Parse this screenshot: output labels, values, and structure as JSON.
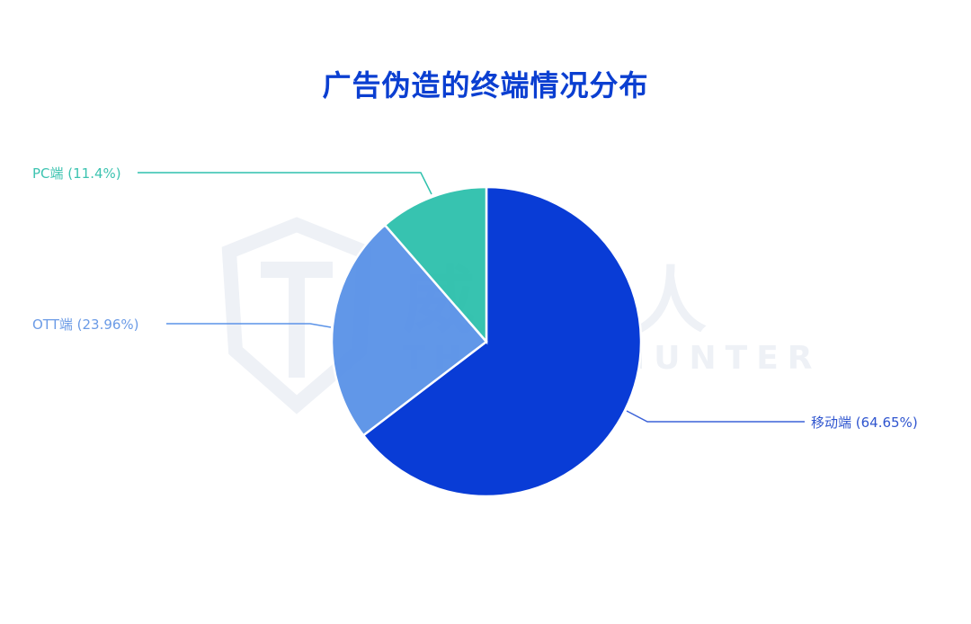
{
  "chart_data": {
    "type": "pie",
    "title": "广告伪造的终端情况分布",
    "start_angle": "12 o'clock",
    "direction": "clockwise",
    "slices": [
      {
        "label": "移动端 (64.65%)",
        "name": "移动端",
        "value": 64.65,
        "color": "#0035d5"
      },
      {
        "label": "OTT端 (23.96%)",
        "name": "OTT端",
        "value": 23.96,
        "color": "#5b93e8"
      },
      {
        "label": "PC端 (11.4%)",
        "name": "PC端",
        "value": 11.4,
        "color": "#2fc1ad"
      }
    ]
  },
  "watermark": {
    "cn": "威胁猎人",
    "en": "THREAT HUNTER"
  }
}
